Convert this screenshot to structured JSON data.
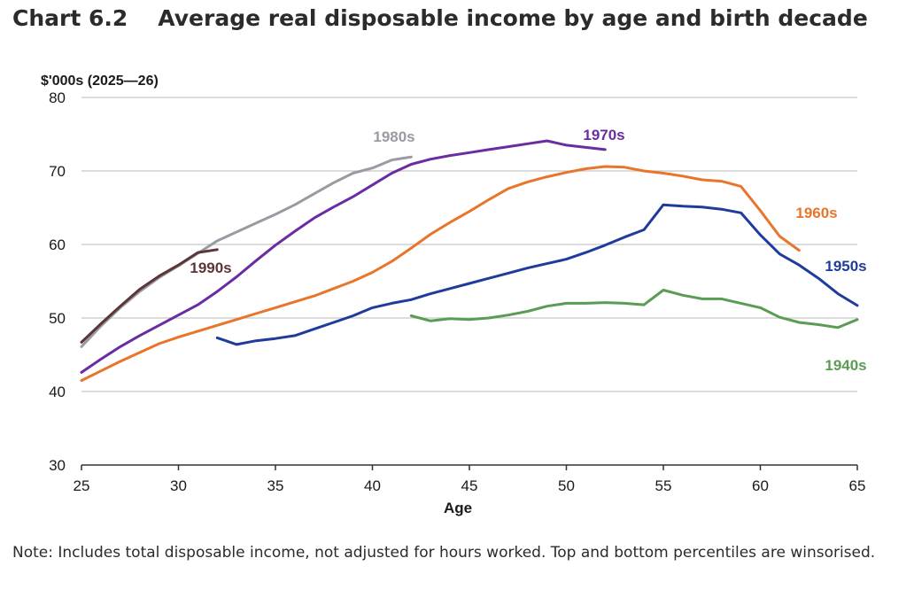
{
  "header": {
    "chart_number": "Chart 6.2",
    "title": "Average real disposable income by age and birth decade"
  },
  "note": "Note: Includes total disposable income, not adjusted for hours worked. Top and bottom percentiles are winsorised.",
  "chart_data": {
    "type": "line",
    "title": "Average real disposable income by age and birth decade",
    "ylabel": "$'000s (2025—26)",
    "xlabel": "Age",
    "xlim": [
      25,
      65
    ],
    "ylim": [
      30,
      80
    ],
    "xticks": [
      25,
      30,
      35,
      40,
      45,
      50,
      55,
      60,
      65
    ],
    "yticks": [
      30,
      40,
      50,
      60,
      70,
      80
    ],
    "grid": "horizontal",
    "series": [
      {
        "name": "1940s",
        "color": "#5a9c54",
        "x": [
          42,
          43,
          44,
          45,
          46,
          47,
          48,
          49,
          50,
          51,
          52,
          53,
          54,
          55,
          56,
          57,
          58,
          59,
          60,
          61,
          62,
          63,
          64,
          65
        ],
        "y": [
          50.3,
          49.6,
          49.9,
          49.8,
          50.0,
          50.4,
          50.9,
          51.6,
          52.0,
          52.0,
          52.1,
          52.0,
          51.8,
          53.8,
          53.1,
          52.6,
          52.6,
          52.0,
          51.4,
          50.1,
          49.4,
          49.1,
          48.7,
          49.8
        ]
      },
      {
        "name": "1950s",
        "color": "#1f3c9c",
        "x": [
          32,
          33,
          34,
          35,
          36,
          37,
          38,
          39,
          40,
          41,
          42,
          43,
          44,
          45,
          46,
          47,
          48,
          49,
          50,
          51,
          52,
          53,
          54,
          55,
          56,
          57,
          58,
          59,
          60,
          61,
          62,
          63,
          64,
          65
        ],
        "y": [
          47.3,
          46.4,
          46.9,
          47.2,
          47.6,
          48.5,
          49.4,
          50.3,
          51.4,
          52.0,
          52.5,
          53.3,
          54.0,
          54.7,
          55.4,
          56.1,
          56.8,
          57.4,
          58.0,
          58.9,
          59.9,
          61.0,
          62.0,
          65.4,
          65.2,
          65.1,
          64.8,
          64.3,
          61.3,
          58.7,
          57.2,
          55.4,
          53.3,
          51.7
        ]
      },
      {
        "name": "1960s",
        "color": "#e8752a",
        "x": [
          25,
          26,
          27,
          28,
          29,
          30,
          31,
          32,
          33,
          34,
          35,
          36,
          37,
          38,
          39,
          40,
          41,
          42,
          43,
          44,
          45,
          46,
          47,
          48,
          49,
          50,
          51,
          52,
          53,
          54,
          55,
          56,
          57,
          58,
          59,
          60,
          61,
          62
        ],
        "y": [
          41.5,
          42.8,
          44.1,
          45.3,
          46.5,
          47.4,
          48.2,
          49.0,
          49.8,
          50.6,
          51.4,
          52.2,
          53.0,
          54.0,
          55.0,
          56.2,
          57.7,
          59.5,
          61.4,
          63.0,
          64.5,
          66.1,
          67.6,
          68.5,
          69.2,
          69.8,
          70.3,
          70.6,
          70.5,
          70.0,
          69.7,
          69.3,
          68.8,
          68.6,
          67.9,
          64.6,
          61.1,
          59.2
        ]
      },
      {
        "name": "1970s",
        "color": "#6a2ca3",
        "x": [
          25,
          26,
          27,
          28,
          29,
          30,
          31,
          32,
          33,
          34,
          35,
          36,
          37,
          38,
          39,
          40,
          41,
          42,
          43,
          44,
          45,
          46,
          47,
          48,
          49,
          50,
          51,
          52
        ],
        "y": [
          42.6,
          44.4,
          46.1,
          47.6,
          49.0,
          50.4,
          51.8,
          53.6,
          55.6,
          57.8,
          59.9,
          61.8,
          63.6,
          65.1,
          66.5,
          68.1,
          69.7,
          70.9,
          71.6,
          72.1,
          72.5,
          72.9,
          73.3,
          73.7,
          74.1,
          73.5,
          73.2,
          72.9
        ]
      },
      {
        "name": "1980s",
        "color": "#9a9aa4",
        "x": [
          25,
          26,
          27,
          28,
          29,
          30,
          31,
          32,
          33,
          34,
          35,
          36,
          37,
          38,
          39,
          40,
          41,
          42
        ],
        "y": [
          46.1,
          48.9,
          51.4,
          53.6,
          55.5,
          57.1,
          58.8,
          60.5,
          61.7,
          62.9,
          64.1,
          65.4,
          66.9,
          68.4,
          69.7,
          70.4,
          71.5,
          71.9
        ]
      },
      {
        "name": "1990s",
        "color": "#5c3636",
        "x": [
          25,
          26,
          27,
          28,
          29,
          30,
          31,
          32
        ],
        "y": [
          46.7,
          49.2,
          51.6,
          53.9,
          55.7,
          57.2,
          58.9,
          59.3
        ]
      }
    ]
  }
}
